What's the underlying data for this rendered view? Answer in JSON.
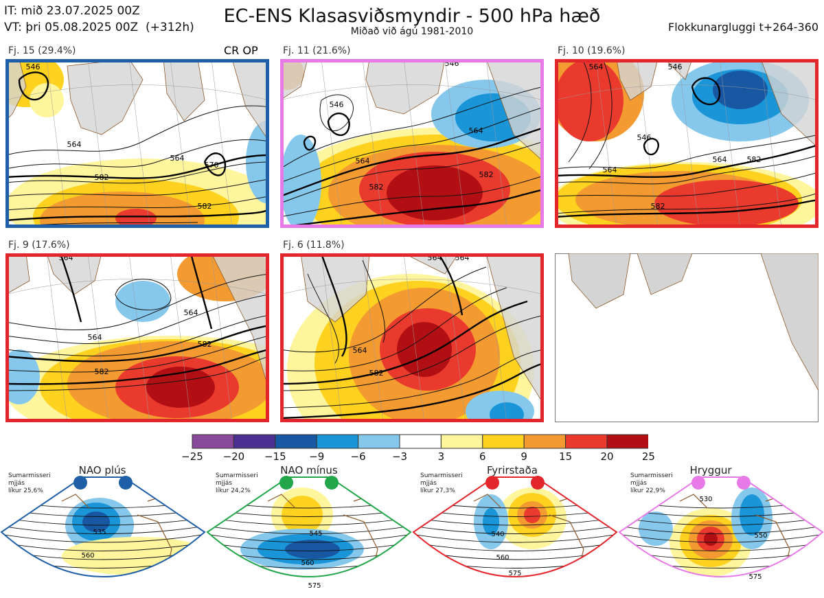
{
  "header": {
    "it_line": "IT: mið 23.07.2025 00Z",
    "vt_line": "VT: þri 05.08.2025 00Z  (+312h)",
    "title": "EC-ENS Klasasviðsmyndir - 500 hPa hæð",
    "subtitle": "Miðað við ágú 1981-2010",
    "window": "Flokkunargluggi t+264-360"
  },
  "colors": {
    "ocean": "#ffffff",
    "land": "#d4d4d4",
    "coast": "#8b5a2b",
    "panel_border_blue": "#1f5fa8",
    "panel_border_pink": "#e87ae8",
    "panel_border_red": "#e3262b"
  },
  "chart_data": {
    "type": "heatmap",
    "title": "EC-ENS Klasasviðsmyndir - 500 hPa hæð",
    "variable": "500 hPa height (dam) with anomaly shading",
    "colorbar": {
      "ticks": [
        "−25",
        "−20",
        "−15",
        "−9",
        "−6",
        "−3",
        "3",
        "6",
        "9",
        "15",
        "20",
        "25"
      ],
      "colors": [
        "#8a4a9b",
        "#4b2f92",
        "#1858a3",
        "#1a95d8",
        "#86c7ec",
        "#ffffff",
        "#fff59d",
        "#ffd21f",
        "#f39a31",
        "#ea3a2d",
        "#b20f14"
      ]
    },
    "clusters": [
      {
        "label": "Fj. 15 (29.4%)",
        "members": 15,
        "percent": 29.4,
        "tag": "CR OP",
        "border": "blue",
        "contour_labels": [
          "546",
          "564",
          "564",
          "582",
          "582",
          "570"
        ]
      },
      {
        "label": "Fj. 11 (21.6%)",
        "members": 11,
        "percent": 21.6,
        "tag": "",
        "border": "pink",
        "contour_labels": [
          "546",
          "546",
          "564",
          "564",
          "582",
          "582"
        ]
      },
      {
        "label": "Fj. 10 (19.6%)",
        "members": 10,
        "percent": 19.6,
        "tag": "",
        "border": "red",
        "contour_labels": [
          "564",
          "546",
          "546",
          "564",
          "564",
          "582",
          "582"
        ]
      },
      {
        "label": "Fj. 9 (17.6%)",
        "members": 9,
        "percent": 17.6,
        "tag": "",
        "border": "red",
        "contour_labels": [
          "564",
          "564",
          "564",
          "582",
          "582"
        ]
      },
      {
        "label": "Fj. 6 (11.8%)",
        "members": 6,
        "percent": 11.8,
        "tag": "",
        "border": "red",
        "contour_labels": [
          "564",
          "564",
          "564",
          "582"
        ]
      }
    ],
    "regimes": [
      {
        "name": "NAO plús",
        "season": "Sumarmisseri",
        "mean": "mjjás",
        "likelihood": "líkur 25,6%",
        "probability": 25.6,
        "marker_color": "#1f5fa8",
        "contour_labels": [
          "535",
          "560"
        ]
      },
      {
        "name": "NAO mínus",
        "season": "Sumarmisseri",
        "mean": "mjjás",
        "likelihood": "líkur 24,2%",
        "probability": 24.2,
        "marker_color": "#22a64a",
        "contour_labels": [
          "545",
          "560",
          "575"
        ]
      },
      {
        "name": "Fyrirstaða",
        "season": "Sumarmisseri",
        "mean": "mjjás",
        "likelihood": "líkur 27,3%",
        "probability": 27.3,
        "marker_color": "#e3262b",
        "contour_labels": [
          "540",
          "560",
          "575"
        ]
      },
      {
        "name": "Hryggur",
        "season": "Sumarmisseri",
        "mean": "mjjás",
        "likelihood": "líkur 22,9%",
        "probability": 22.9,
        "marker_color": "#e87ae8",
        "contour_labels": [
          "530",
          "550",
          "575"
        ]
      }
    ]
  }
}
